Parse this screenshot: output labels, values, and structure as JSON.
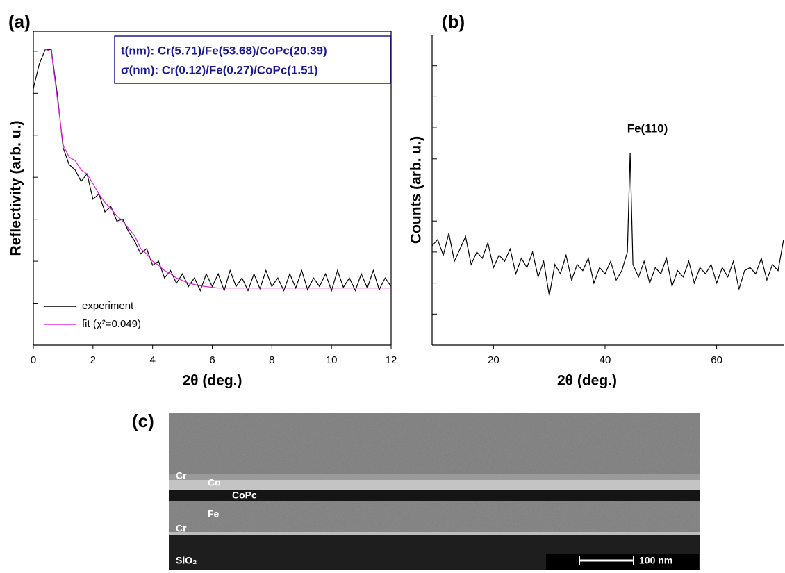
{
  "chart_data": [
    {
      "type": "line",
      "panel_label": "(a)",
      "xlabel": "2θ (deg.)",
      "ylabel": "Reflectivity (arb. u.)",
      "xlim": [
        0,
        12
      ],
      "xticks": [
        0,
        2,
        4,
        6,
        8,
        10,
        12
      ],
      "yscale": "log",
      "ylim": [
        1e-07,
        3
      ],
      "yticks": [
        1e-07,
        1e-06,
        1e-05,
        0.0001,
        0.001,
        0.01,
        0.1,
        1
      ],
      "legend": "lower left",
      "annotations": [
        "t(nm):  Cr(5.71)/Fe(53.68)/CoPc(20.39)",
        "σ(nm): Cr(0.12)/Fe(0.27)/CoPc(1.51)"
      ],
      "x": [
        0,
        0.2,
        0.4,
        0.6,
        0.8,
        1,
        1.2,
        1.4,
        1.6,
        1.8,
        2,
        2.2,
        2.4,
        2.6,
        2.8,
        3,
        3.2,
        3.4,
        3.6,
        3.8,
        4,
        4.2,
        4.4,
        4.6,
        4.8,
        5,
        5.2,
        5.4,
        5.6,
        5.8,
        6,
        6.2,
        6.4,
        6.6,
        6.8,
        7,
        7.2,
        7.4,
        7.6,
        7.8,
        8,
        8.2,
        8.4,
        8.6,
        8.8,
        9,
        9.2,
        9.4,
        9.6,
        9.8,
        10,
        10.2,
        10.4,
        10.6,
        10.8,
        11,
        11.2,
        11.4,
        11.6,
        11.8,
        12
      ],
      "series": [
        {
          "name": "experiment",
          "color": "#000000",
          "values": [
            0.13,
            0.5,
            1.1,
            1.1,
            0.1,
            0.005,
            0.002,
            0.0015,
            0.0008,
            0.0012,
            0.0003,
            0.0004,
            0.00015,
            0.0002,
            9e-05,
            0.0001,
            5e-05,
            3e-05,
            1.5e-05,
            2e-05,
            8e-06,
            1e-05,
            4e-06,
            6e-06,
            3e-06,
            5e-06,
            2.5e-06,
            4e-06,
            2e-06,
            5e-06,
            2.5e-06,
            5e-06,
            2e-06,
            6e-06,
            2.5e-06,
            4e-06,
            2e-06,
            5e-06,
            2.2e-06,
            6e-06,
            2.5e-06,
            4e-06,
            2e-06,
            5e-06,
            2.3e-06,
            6e-06,
            2.1e-06,
            4e-06,
            2.5e-06,
            5e-06,
            2e-06,
            6e-06,
            2.4e-06,
            4e-06,
            2e-06,
            5e-06,
            2.3e-06,
            6e-06,
            2.1e-06,
            4e-06,
            2.5e-06
          ]
        },
        {
          "name": "fit (χ²=0.049)",
          "color": "#e020e0",
          "values": [
            null,
            null,
            1.1,
            1.0,
            0.08,
            0.006,
            0.003,
            0.0025,
            0.0015,
            0.0012,
            0.0007,
            0.0004,
            0.00025,
            0.00018,
            0.00012,
            9e-05,
            6e-05,
            4e-05,
            2e-05,
            1.5e-05,
            1e-05,
            8e-06,
            6e-06,
            5e-06,
            4e-06,
            3.5e-06,
            3e-06,
            2.8e-06,
            2.6e-06,
            2.5e-06,
            2.4e-06,
            2.3e-06,
            2.3e-06,
            2.3e-06,
            2.3e-06,
            2.3e-06,
            2.3e-06,
            2.3e-06,
            2.3e-06,
            2.3e-06,
            2.3e-06,
            2.3e-06,
            2.3e-06,
            2.3e-06,
            2.3e-06,
            2.3e-06,
            2.3e-06,
            2.3e-06,
            2.3e-06,
            2.3e-06,
            2.3e-06,
            2.3e-06,
            2.3e-06,
            2.3e-06,
            2.3e-06,
            2.3e-06,
            2.3e-06,
            2.3e-06,
            2.3e-06,
            2.3e-06,
            2.3e-06
          ]
        }
      ]
    },
    {
      "type": "line",
      "panel_label": "(b)",
      "xlabel": "2θ (deg.)",
      "ylabel": "Counts (arb. u.)",
      "xlim": [
        9,
        72
      ],
      "xticks": [
        20,
        40,
        60
      ],
      "ylim": [
        0,
        10
      ],
      "yticks": [
        1,
        2,
        3,
        4,
        5,
        6,
        7,
        8,
        9
      ],
      "annotations": [
        "Fe(110)"
      ],
      "x": [
        9,
        10,
        11,
        12,
        13,
        14,
        15,
        16,
        17,
        18,
        19,
        20,
        21,
        22,
        23,
        24,
        25,
        26,
        27,
        28,
        29,
        30,
        31,
        32,
        33,
        34,
        35,
        36,
        37,
        38,
        39,
        40,
        41,
        42,
        43,
        44,
        44.5,
        45,
        46,
        47,
        48,
        49,
        50,
        51,
        52,
        53,
        54,
        55,
        56,
        57,
        58,
        59,
        60,
        61,
        62,
        63,
        64,
        65,
        66,
        67,
        68,
        69,
        70,
        71,
        72
      ],
      "series": [
        {
          "name": "counts",
          "color": "#000000",
          "values": [
            3.2,
            3.4,
            2.9,
            3.6,
            2.7,
            3.1,
            3.5,
            2.6,
            3.0,
            2.8,
            3.3,
            2.5,
            2.9,
            2.7,
            3.1,
            2.3,
            2.8,
            2.5,
            3.0,
            2.2,
            2.7,
            1.6,
            2.6,
            2.3,
            2.9,
            2.1,
            2.6,
            2.4,
            2.8,
            2.0,
            2.5,
            2.3,
            2.7,
            2.1,
            2.4,
            3.0,
            6.2,
            2.6,
            2.2,
            2.7,
            2.0,
            2.5,
            2.3,
            2.8,
            1.9,
            2.4,
            2.2,
            2.7,
            2.0,
            2.5,
            2.3,
            2.6,
            2.0,
            2.5,
            2.2,
            2.7,
            1.8,
            2.4,
            2.5,
            2.3,
            2.8,
            2.1,
            2.6,
            2.4,
            3.4
          ]
        }
      ]
    }
  ],
  "micrograph": {
    "label": "(c)",
    "layers": [
      "Cr",
      "Co",
      "CoPc",
      "Fe",
      "Cr",
      "SiO₂"
    ],
    "scale_bar": "100 nm"
  }
}
